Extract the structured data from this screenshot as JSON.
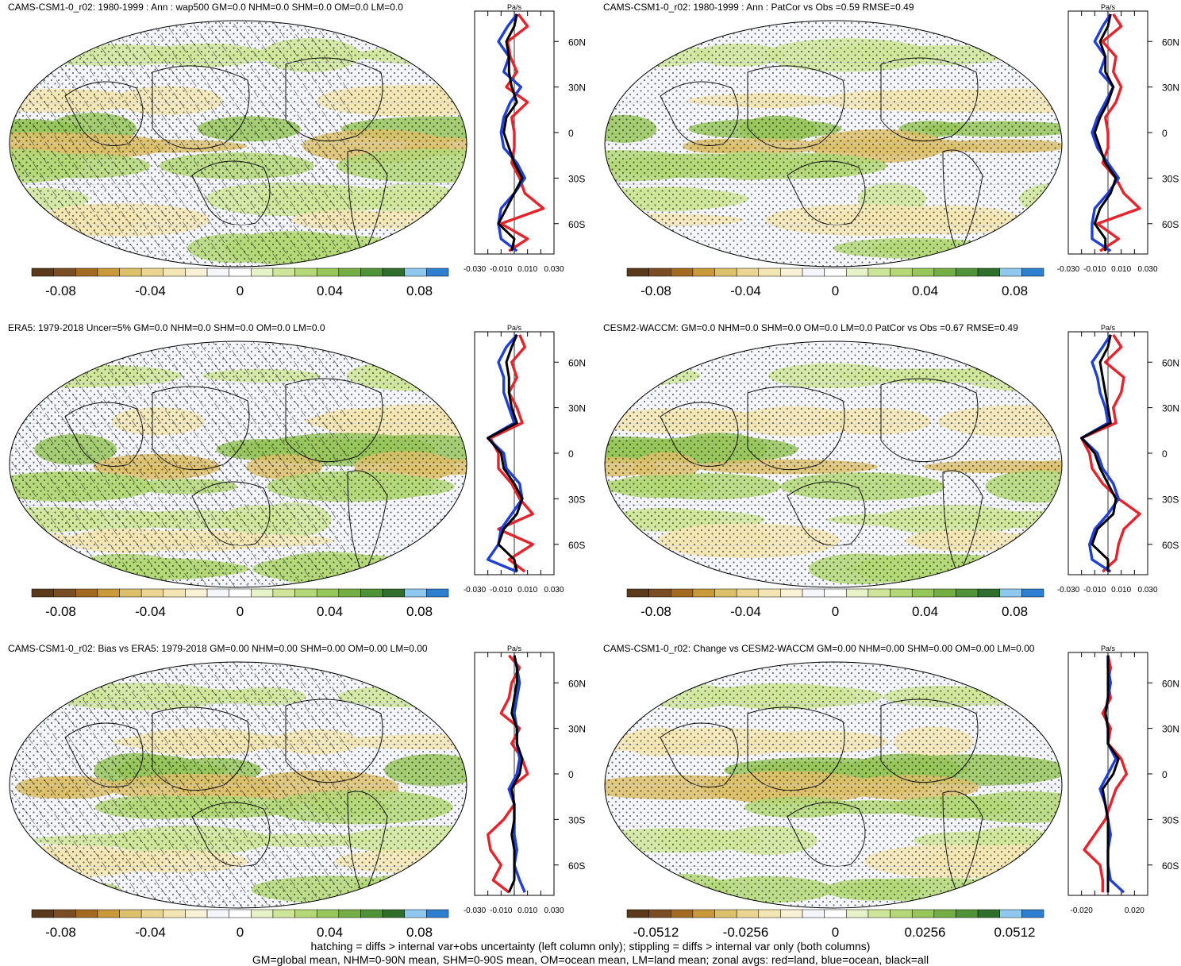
{
  "footer": {
    "line1": "hatching = diffs > internal var+obs uncertainty (left column only); stippling = diffs > internal var only (both columns)",
    "line2": "GM=global mean, NHM=0-90N mean, SHM=0-90S mean, OM=ocean mean, LM=land mean; zonal avgs: red=land, blue=ocean, black=all"
  },
  "colors": {
    "land": "#e8222a",
    "ocean": "#1f3fd6",
    "all": "#000000",
    "ocean_fill": "#f3f5fa",
    "coast": "#111111"
  },
  "colorbar_colors": [
    "#5a3a1a",
    "#7a4e24",
    "#a36a22",
    "#c99a3a",
    "#dcc06a",
    "#ead692",
    "#f3e6b4",
    "#faf2d6",
    "#f4f6fb",
    "#ffffff",
    "#e7f2c8",
    "#cfe69a",
    "#b4d877",
    "#96c65a",
    "#74ae45",
    "#4f9238",
    "#2f6e2c",
    "#8ec8ee",
    "#2f7fd0"
  ],
  "chart_data": [
    {
      "type": "map+zonal-line",
      "title": "CAMS-CSM1-0_r02: 1980-1999 : Ann : wap500 GM=0.0 NHM=0.0 SHM=0.0 OM=0.0 LM=0.0",
      "hatching": true,
      "colorbar_ticks": [
        "-0.08",
        "-0.04",
        "0",
        "0.04",
        "0.08"
      ],
      "zonal": {
        "unit": "Pa/s",
        "xlim": [
          -0.03,
          0.03
        ],
        "xticks": [
          "-0.030",
          "-0.010",
          "0.010",
          "0.030"
        ],
        "lat_ticks": [
          "60N",
          "30N",
          "0",
          "30S",
          "60S"
        ],
        "lat": [
          78,
          70,
          60,
          50,
          40,
          30,
          20,
          10,
          0,
          -10,
          -20,
          -30,
          -40,
          -50,
          -60,
          -70,
          -78
        ],
        "series": [
          {
            "name": "land",
            "values": [
              0.003,
              0.01,
              -0.005,
              -0.003,
              0.002,
              -0.006,
              0.01,
              -0.002,
              0.0,
              0.0,
              -0.002,
              0.004,
              0.008,
              0.022,
              -0.01,
              0.01,
              -0.004
            ]
          },
          {
            "name": "ocean",
            "values": [
              0.002,
              -0.005,
              -0.012,
              -0.004,
              -0.008,
              0.005,
              -0.003,
              -0.008,
              -0.01,
              -0.008,
              0.002,
              0.008,
              0.0,
              -0.01,
              -0.012,
              -0.01,
              0.002
            ]
          },
          {
            "name": "all",
            "values": [
              0.002,
              0.0,
              -0.006,
              -0.004,
              -0.004,
              -0.002,
              0.002,
              -0.006,
              -0.008,
              -0.004,
              0.0,
              0.006,
              0.0,
              -0.006,
              -0.012,
              0.0,
              -0.002
            ]
          }
        ]
      }
    },
    {
      "type": "map+zonal-line",
      "title": "CAMS-CSM1-0_r02: 1980-1999 : Ann : PatCor vs Obs =0.59 RMSE=0.49",
      "hatching": false,
      "colorbar_ticks": [
        "-0.08",
        "-0.04",
        "0",
        "0.04",
        "0.08"
      ],
      "zonal": {
        "unit": "Pa/s",
        "xlim": [
          -0.03,
          0.03
        ],
        "xticks": [
          "-0.030",
          "-0.010",
          "0.010",
          "0.030"
        ],
        "lat_ticks": [
          "60N",
          "30N",
          "0",
          "30S",
          "60S"
        ],
        "lat": [
          78,
          70,
          60,
          50,
          40,
          30,
          20,
          10,
          0,
          -10,
          -20,
          -30,
          -40,
          -50,
          -60,
          -70,
          -78
        ],
        "series": [
          {
            "name": "land",
            "values": [
              0.004,
              0.01,
              -0.004,
              0.006,
              0.004,
              0.01,
              0.006,
              -0.002,
              0.0,
              0.0,
              -0.004,
              0.006,
              0.012,
              0.024,
              -0.008,
              0.008,
              -0.006
            ]
          },
          {
            "name": "ocean",
            "values": [
              0.002,
              -0.004,
              -0.01,
              -0.002,
              -0.006,
              0.004,
              -0.002,
              -0.008,
              -0.012,
              -0.008,
              0.0,
              0.008,
              0.0,
              -0.01,
              -0.012,
              -0.012,
              0.002
            ]
          },
          {
            "name": "all",
            "values": [
              0.002,
              0.0,
              -0.006,
              -0.002,
              -0.002,
              0.004,
              0.0,
              -0.006,
              -0.01,
              -0.006,
              -0.002,
              0.006,
              0.002,
              -0.006,
              -0.01,
              -0.002,
              -0.002
            ]
          }
        ]
      }
    },
    {
      "type": "map+zonal-line",
      "title": "ERA5: 1979-2018 Uncer=5% GM=0.0 NHM=0.0 SHM=0.0 OM=0.0 LM=0.0",
      "hatching": true,
      "colorbar_ticks": [
        "-0.08",
        "-0.04",
        "0",
        "0.04",
        "0.08"
      ],
      "zonal": {
        "unit": "Pa/s",
        "xlim": [
          -0.03,
          0.03
        ],
        "xticks": [
          "-0.030",
          "-0.010",
          "0.010",
          "0.030"
        ],
        "lat_ticks": [
          "60N",
          "30N",
          "0",
          "30S",
          "60S"
        ],
        "lat": [
          78,
          70,
          60,
          50,
          40,
          30,
          20,
          10,
          0,
          -10,
          -20,
          -30,
          -40,
          -50,
          -60,
          -70,
          -78
        ],
        "series": [
          {
            "name": "land",
            "values": [
              0.004,
              0.008,
              -0.002,
              0.002,
              -0.004,
              0.002,
              0.006,
              -0.018,
              -0.012,
              -0.012,
              -0.002,
              0.004,
              0.014,
              -0.012,
              0.014,
              -0.004,
              0.008
            ]
          },
          {
            "name": "ocean",
            "values": [
              0.002,
              -0.006,
              -0.012,
              -0.008,
              -0.008,
              -0.004,
              0.0,
              -0.02,
              -0.008,
              -0.006,
              0.004,
              0.006,
              -0.002,
              -0.01,
              -0.012,
              -0.02,
              0.002
            ]
          },
          {
            "name": "all",
            "values": [
              0.002,
              -0.002,
              -0.006,
              -0.004,
              -0.004,
              -0.002,
              0.002,
              -0.02,
              -0.01,
              -0.008,
              0.0,
              0.006,
              0.002,
              -0.008,
              -0.012,
              0.0,
              0.002
            ]
          }
        ]
      }
    },
    {
      "type": "map+zonal-line",
      "title": "CESM2-WACCM: GM=0.0 NHM=0.0 SHM=0.0 OM=0.0 LM=0.0 PatCor vs Obs =0.67 RMSE=0.49",
      "hatching": false,
      "colorbar_ticks": [
        "-0.08",
        "-0.04",
        "0",
        "0.04",
        "0.08"
      ],
      "zonal": {
        "unit": "Pa/s",
        "xlim": [
          -0.03,
          0.03
        ],
        "xticks": [
          "-0.030",
          "-0.010",
          "0.010",
          "0.030"
        ],
        "lat_ticks": [
          "60N",
          "30N",
          "0",
          "30S",
          "60S"
        ],
        "lat": [
          78,
          70,
          60,
          50,
          40,
          30,
          20,
          10,
          0,
          -10,
          -20,
          -30,
          -40,
          -50,
          -60,
          -70,
          -78
        ],
        "series": [
          {
            "name": "land",
            "values": [
              0.004,
              0.01,
              -0.002,
              0.012,
              0.01,
              0.004,
              0.006,
              -0.02,
              -0.014,
              -0.012,
              -0.004,
              0.008,
              0.024,
              0.012,
              0.008,
              0.006,
              -0.004
            ]
          },
          {
            "name": "ocean",
            "values": [
              0.002,
              -0.004,
              -0.012,
              -0.008,
              -0.006,
              -0.002,
              0.0,
              -0.02,
              -0.008,
              -0.004,
              0.004,
              0.008,
              0.0,
              -0.01,
              -0.014,
              -0.012,
              0.002
            ]
          },
          {
            "name": "all",
            "values": [
              0.002,
              0.0,
              -0.006,
              -0.004,
              -0.002,
              0.0,
              0.002,
              -0.02,
              -0.01,
              -0.006,
              0.0,
              0.006,
              0.004,
              -0.008,
              -0.012,
              0.0,
              0.0
            ]
          }
        ]
      }
    },
    {
      "type": "map+zonal-line",
      "title": "CAMS-CSM1-0_r02: Bias vs ERA5: 1979-2018 GM=0.00 NHM=0.00 SHM=0.00 OM=0.00 LM=0.00",
      "hatching": true,
      "colorbar_ticks": [
        "-0.08",
        "-0.04",
        "0",
        "0.04",
        "0.08"
      ],
      "zonal": {
        "unit": "Pa/s",
        "xlim": [
          -0.03,
          0.03
        ],
        "xticks": [
          "-0.030",
          "-0.010",
          "0.010",
          "0.030"
        ],
        "lat_ticks": [
          "60N",
          "30N",
          "0",
          "30S",
          "60S"
        ],
        "lat": [
          78,
          70,
          60,
          50,
          40,
          30,
          20,
          10,
          0,
          -10,
          -20,
          -30,
          -40,
          -50,
          -60,
          -70,
          -78
        ],
        "series": [
          {
            "name": "land",
            "values": [
              -0.004,
              0.004,
              -0.002,
              -0.004,
              -0.01,
              0.004,
              -0.002,
              0.006,
              0.01,
              -0.004,
              0.0,
              -0.008,
              -0.02,
              -0.018,
              -0.01,
              -0.016,
              -0.004
            ]
          },
          {
            "name": "ocean",
            "values": [
              0.0,
              0.002,
              0.004,
              0.002,
              0.0,
              0.002,
              0.002,
              0.004,
              0.002,
              -0.004,
              0.0,
              0.0,
              0.0,
              0.002,
              0.0,
              0.004,
              0.008
            ]
          },
          {
            "name": "all",
            "values": [
              0.0,
              0.002,
              0.002,
              0.0,
              -0.002,
              0.002,
              0.002,
              0.006,
              0.004,
              -0.002,
              0.0,
              0.0,
              -0.002,
              0.0,
              0.0,
              0.0,
              -0.004
            ]
          }
        ]
      }
    },
    {
      "type": "map+zonal-line",
      "title": "CAMS-CSM1-0_r02: Change vs CESM2-WACCM GM=0.00 NHM=0.00 SHM=0.00 OM=0.00 LM=0.00",
      "hatching": false,
      "colorbar_ticks": [
        "-0.0512",
        "-0.0256",
        "0",
        "0.0256",
        "0.0512"
      ],
      "zonal": {
        "unit": "Pa/s",
        "xlim": [
          -0.03,
          0.03
        ],
        "xticks": [
          "-0.020",
          "0.020"
        ],
        "lat_ticks": [
          "60N",
          "30N",
          "0",
          "30S",
          "60S"
        ],
        "lat": [
          78,
          70,
          60,
          50,
          40,
          30,
          20,
          10,
          0,
          -10,
          -20,
          -30,
          -40,
          -50,
          -60,
          -70,
          -78
        ],
        "series": [
          {
            "name": "land",
            "values": [
              0.0,
              0.002,
              0.0,
              0.002,
              -0.004,
              0.002,
              0.0,
              0.01,
              0.014,
              0.006,
              0.002,
              -0.002,
              -0.01,
              -0.018,
              -0.006,
              -0.004,
              -0.004
            ]
          },
          {
            "name": "ocean",
            "values": [
              0.0,
              0.0,
              0.002,
              0.0,
              -0.002,
              0.0,
              0.0,
              0.006,
              0.0,
              -0.006,
              -0.002,
              0.0,
              0.002,
              0.0,
              0.0,
              0.002,
              0.012
            ]
          },
          {
            "name": "all",
            "values": [
              0.0,
              0.0,
              0.0,
              0.0,
              -0.002,
              0.0,
              0.0,
              0.008,
              0.004,
              -0.004,
              -0.002,
              0.0,
              0.0,
              0.0,
              0.0,
              0.0,
              0.0
            ]
          }
        ]
      }
    }
  ]
}
